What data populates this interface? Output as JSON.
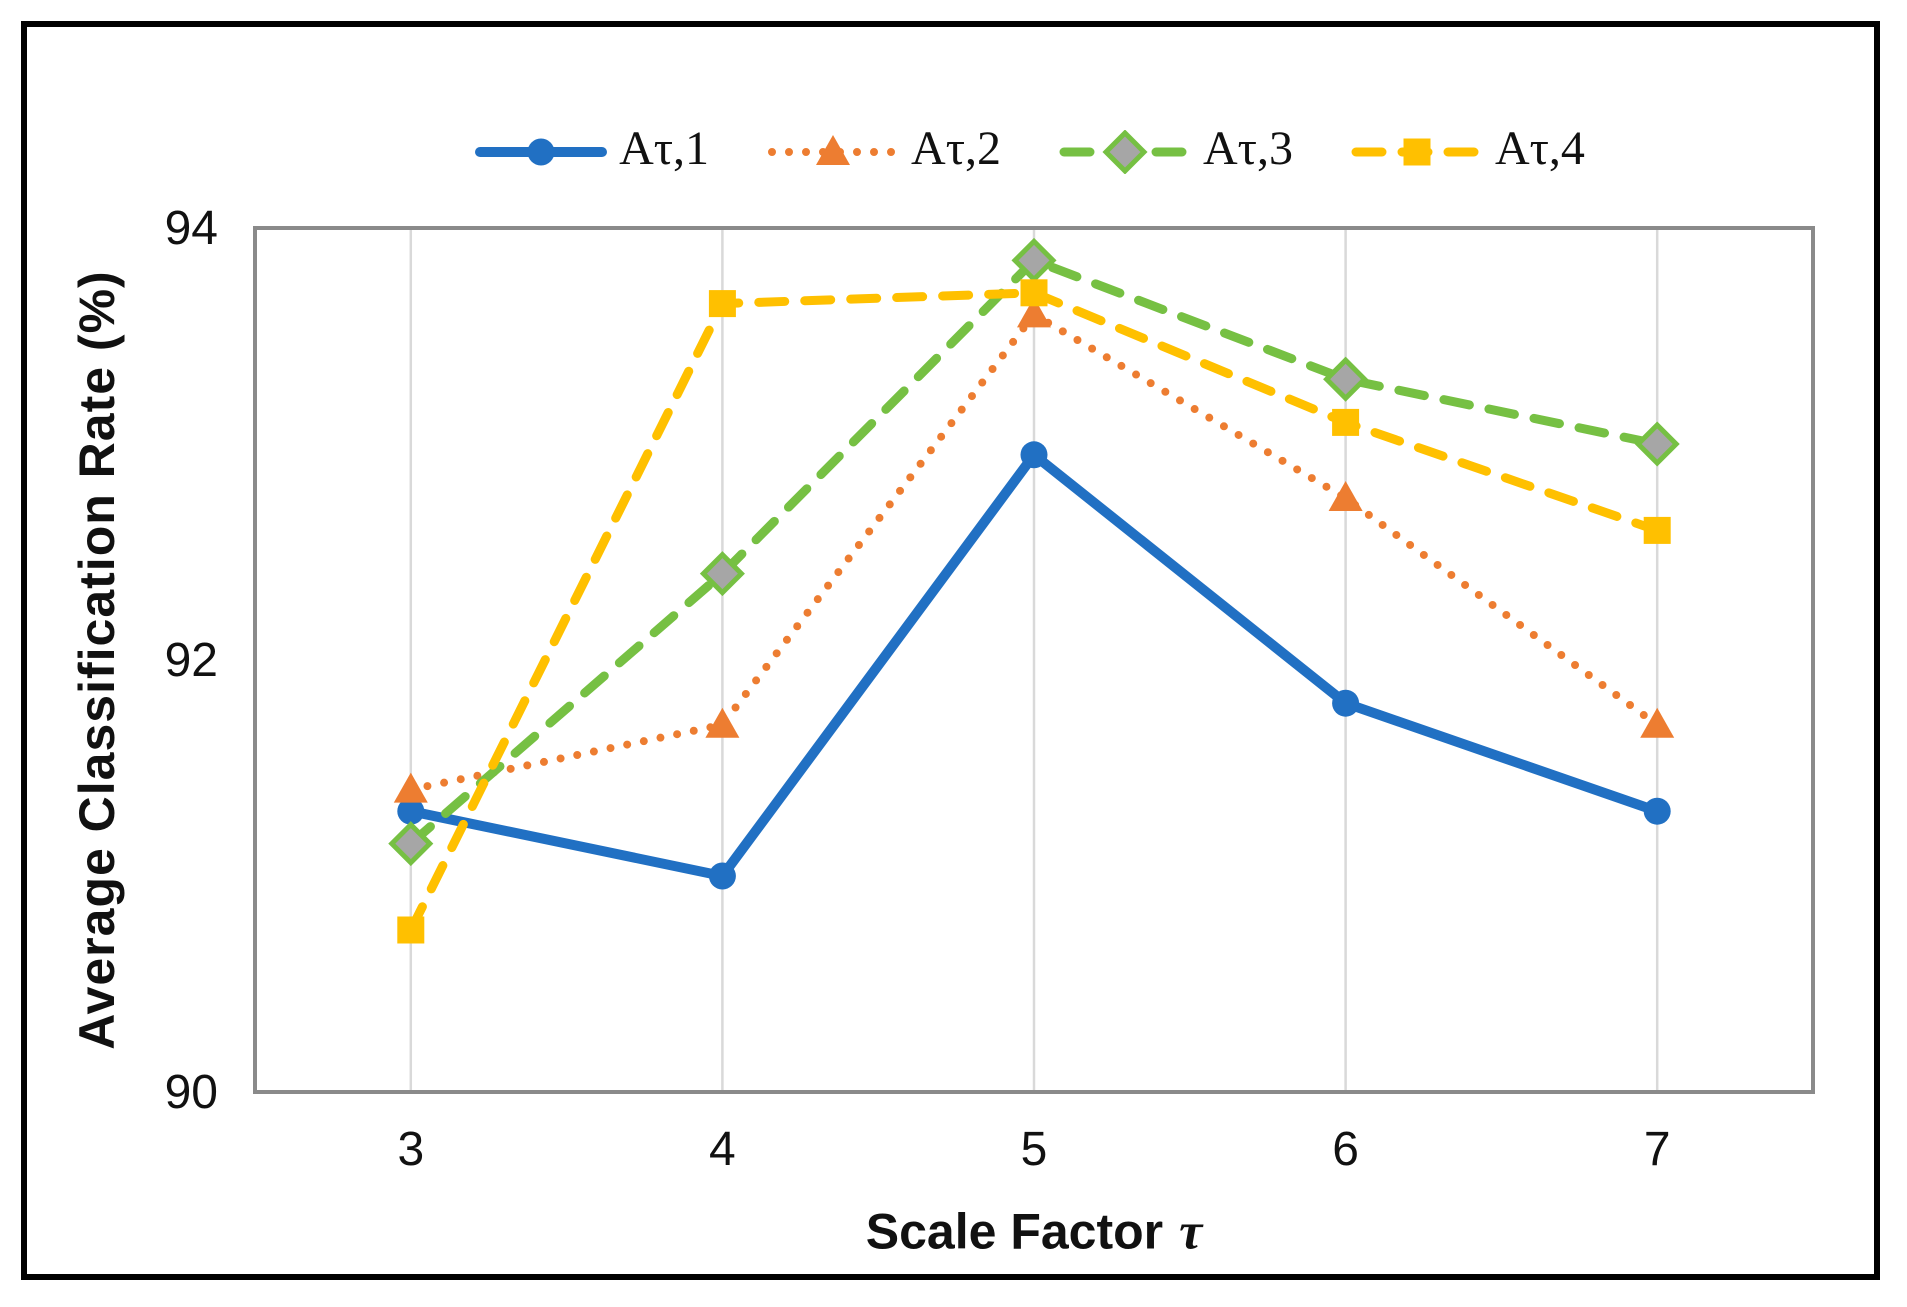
{
  "figure": {
    "xlabel_main": "Scale Factor",
    "xlabel_symbol": "τ"
  },
  "chart_data": {
    "type": "line",
    "x": [
      3,
      4,
      5,
      6,
      7
    ],
    "xlabel": "Scale Factor τ",
    "ylabel": "Average Classification Rate (%)",
    "ylim": [
      90,
      94
    ],
    "yticks": [
      94,
      92,
      90
    ],
    "grid": "vertical-only",
    "legend_position": "top-center",
    "plot_border_color": "#8A8A8A",
    "gridline_color": "#D9D9D9",
    "series": [
      {
        "name": "Aτ,1",
        "values": [
          91.3,
          91.0,
          92.95,
          91.8,
          91.3
        ],
        "color": "#2170C3",
        "line": "solid",
        "marker": "circle",
        "marker_fill": "#2170C3"
      },
      {
        "name": "Aτ,2",
        "values": [
          91.4,
          91.7,
          93.6,
          92.75,
          91.7
        ],
        "color": "#ED7D31",
        "line": "dotted",
        "marker": "triangle",
        "marker_fill": "#ED7D31"
      },
      {
        "name": "Aτ,3",
        "values": [
          91.15,
          92.4,
          93.85,
          93.3,
          93.0
        ],
        "color": "#76C043",
        "line": "dashed",
        "marker": "diamond",
        "marker_fill": "#A6A6A6"
      },
      {
        "name": "Aτ,4",
        "values": [
          90.75,
          93.65,
          93.7,
          93.1,
          92.6
        ],
        "color": "#FFC000",
        "line": "dashed",
        "marker": "square",
        "marker_fill": "#FFC000"
      }
    ]
  }
}
